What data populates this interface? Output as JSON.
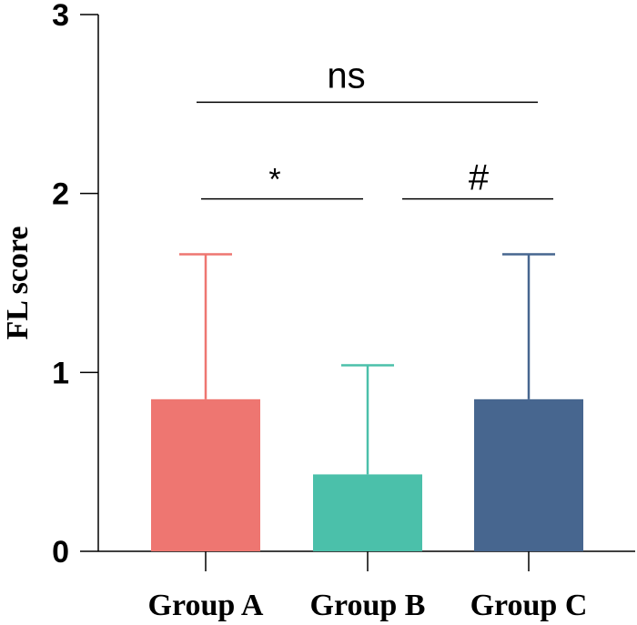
{
  "chart_data": {
    "type": "bar",
    "ylabel": "FL score",
    "xlabel": "",
    "title": "",
    "ylim": [
      0,
      3
    ],
    "yticks": [
      0,
      1,
      2,
      3
    ],
    "categories": [
      "Group A",
      "Group B",
      "Group C"
    ],
    "values": [
      0.85,
      0.43,
      0.85
    ],
    "error_upper": [
      1.66,
      1.04,
      1.66
    ],
    "colors": [
      "#EE7671",
      "#4BC0AA",
      "#47668F"
    ],
    "significance": [
      {
        "label": "*",
        "from": "Group A",
        "to": "Group B",
        "level": 1.97
      },
      {
        "label": "#",
        "from": "Group B",
        "to": "Group C",
        "level": 1.97
      },
      {
        "label": "ns",
        "from": "Group A",
        "to": "Group C",
        "level": 2.51
      }
    ]
  }
}
